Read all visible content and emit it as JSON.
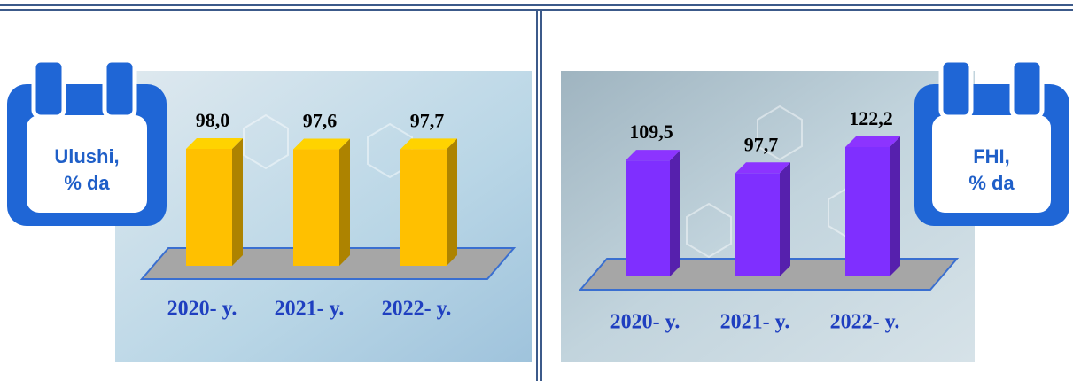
{
  "chart_data": [
    {
      "type": "bar3d",
      "title_lines": [
        "Ulushi,",
        "% da"
      ],
      "categories": [
        "2020- y.",
        "2021- y.",
        "2022- y."
      ],
      "values": [
        98.0,
        97.6,
        97.7
      ],
      "value_labels": [
        "98,0",
        "97,6",
        "97,7"
      ],
      "color": "#ffc000"
    },
    {
      "type": "bar3d",
      "title_lines": [
        "FHI,",
        "% da"
      ],
      "categories": [
        "2020- y.",
        "2021- y.",
        "2022- y."
      ],
      "values": [
        109.5,
        97.7,
        122.2
      ],
      "value_labels": [
        "109,5",
        "97,7",
        "122,2"
      ],
      "color": "#7f2fff"
    }
  ]
}
